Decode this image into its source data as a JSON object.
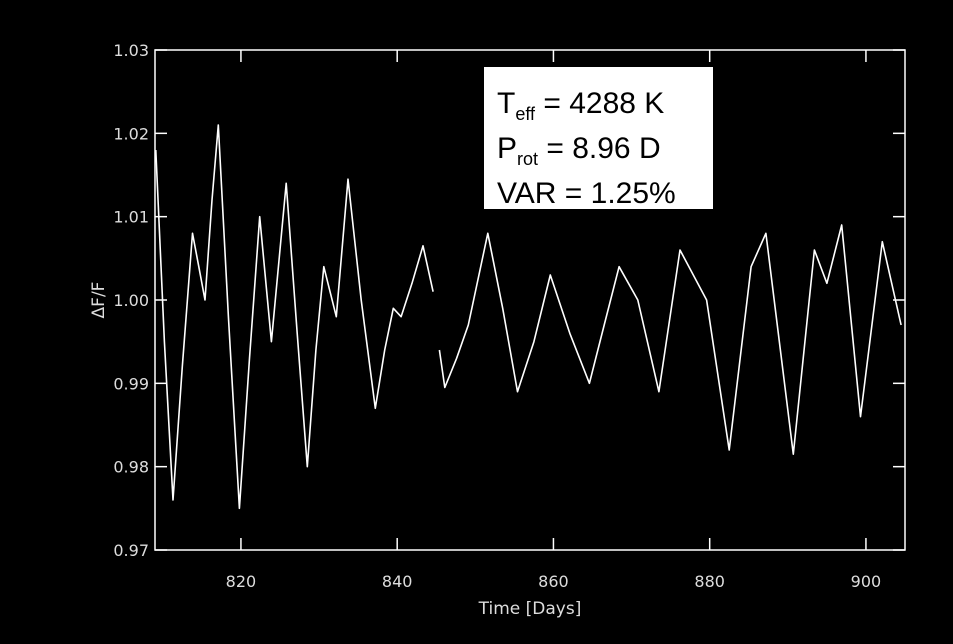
{
  "chart_data": {
    "type": "line",
    "xlabel": "Time [Days]",
    "ylabel": "ΔF/F",
    "annotations": [
      [
        "T",
        "eff",
        " = 4288 K"
      ],
      [
        "P",
        "rot",
        " = 8.96 D"
      ],
      [
        "VAR = 1.25%"
      ]
    ],
    "color": "#ffffff",
    "xlim": [
      809,
      905
    ],
    "ylim": [
      0.97,
      1.03
    ],
    "xticks": [
      820,
      840,
      860,
      880,
      900
    ],
    "yticks": [
      0.97,
      0.98,
      0.99,
      {
        "value": 1,
        "label": "1.00"
      },
      1.01,
      1.02,
      1.03
    ],
    "x": [
      809.1,
      810.2,
      811.3,
      812.5,
      813.8,
      814.6,
      815.4,
      816.3,
      817.1,
      818.4,
      819.8,
      821.1,
      822.4,
      823.9,
      825.8,
      827.2,
      828.5,
      829.6,
      830.6,
      832.2,
      833.7,
      835.4,
      837.2,
      838.4,
      839.5,
      840.5,
      841.9,
      843.3,
      844.6,
      845.0,
      845.4,
      846.1,
      847.6,
      849.1,
      851.6,
      853.5,
      855.4,
      857.5,
      859.6,
      862.1,
      864.6,
      866.5,
      868.4,
      870.8,
      873.5,
      876.2,
      879.6,
      882.5,
      885.3,
      887.2,
      890.7,
      893.4,
      895.0,
      896.9,
      899.3,
      902.1,
      904.5
    ],
    "values": [
      1.018,
      0.995,
      0.976,
      0.992,
      1.008,
      1.004,
      1.0,
      1.012,
      1.021,
      0.998,
      0.975,
      0.993,
      1.01,
      0.995,
      1.014,
      0.996,
      0.98,
      0.994,
      1.004,
      0.998,
      1.0145,
      1.0,
      0.987,
      0.994,
      0.999,
      0.998,
      1.002,
      1.0065,
      1.001,
      null,
      0.994,
      0.9895,
      0.993,
      0.997,
      1.008,
      0.999,
      0.989,
      0.995,
      1.003,
      0.996,
      0.99,
      0.997,
      1.004,
      1.0,
      0.989,
      1.006,
      1.0,
      0.982,
      1.004,
      1.008,
      0.9815,
      1.006,
      1.002,
      1.009,
      0.986,
      1.007,
      0.997
    ]
  }
}
